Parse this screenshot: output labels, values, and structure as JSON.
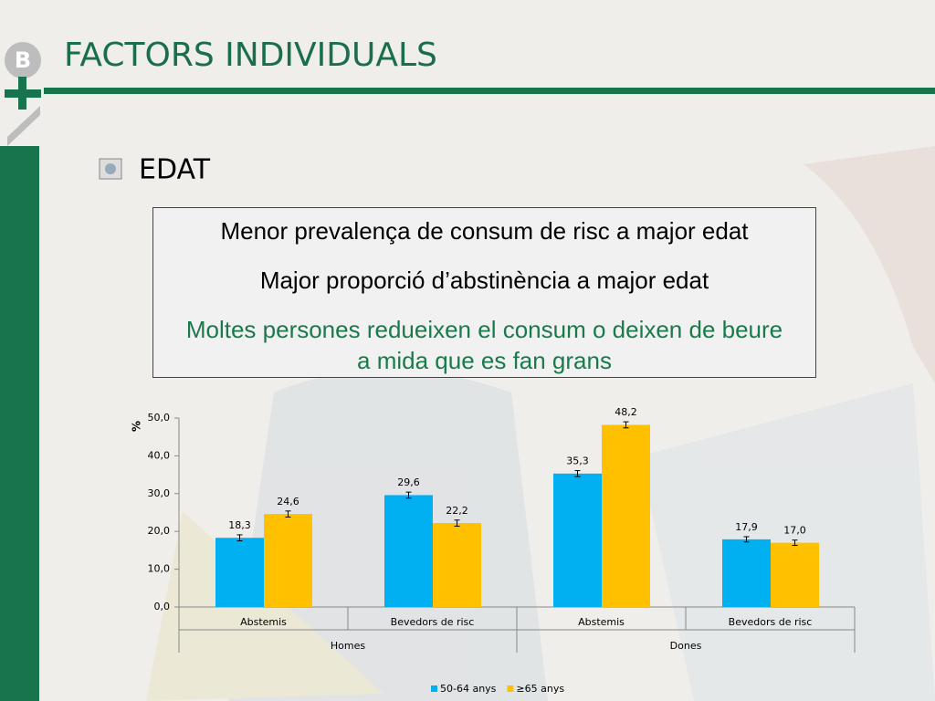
{
  "slide": {
    "title": "FACTORS INDIVIDUALS",
    "bullet": "EDAT",
    "box": [
      "Menor prevalença de consum de risc a major edat",
      "Major proporció d’abstinència a major edat",
      "Moltes persones redueixen el consum o deixen de beure a mida que es fan grans"
    ]
  },
  "chart_data": {
    "type": "bar",
    "y_label": "%",
    "categories": [
      "Abstemis",
      "Bevedors de risc",
      "Abstemis",
      "Bevedors de risc"
    ],
    "groups": [
      "Homes",
      "Dones"
    ],
    "series": [
      {
        "name": "50-64 anys",
        "color": "#00b0f0",
        "values": [
          18.3,
          29.6,
          35.3,
          17.9
        ],
        "value_labels": [
          "18,3",
          "29,6",
          "35,3",
          "17,9"
        ],
        "errors": [
          0.8,
          0.8,
          0.8,
          0.7
        ]
      },
      {
        "name": "≥65 anys",
        "color": "#ffc000",
        "values": [
          24.6,
          22.2,
          48.2,
          17.0
        ],
        "value_labels": [
          "24,6",
          "22,2",
          "48,2",
          "17,0"
        ],
        "errors": [
          0.8,
          0.8,
          0.8,
          0.7
        ]
      }
    ],
    "ylim": [
      0,
      50
    ],
    "yticks": [
      {
        "value": 0,
        "label": "0,0"
      },
      {
        "value": 10,
        "label": "10,0"
      },
      {
        "value": 20,
        "label": "20,0"
      },
      {
        "value": 30,
        "label": "30,0"
      },
      {
        "value": 40,
        "label": "40,0"
      },
      {
        "value": 50,
        "label": "50,0"
      }
    ],
    "legend": "bottom"
  }
}
